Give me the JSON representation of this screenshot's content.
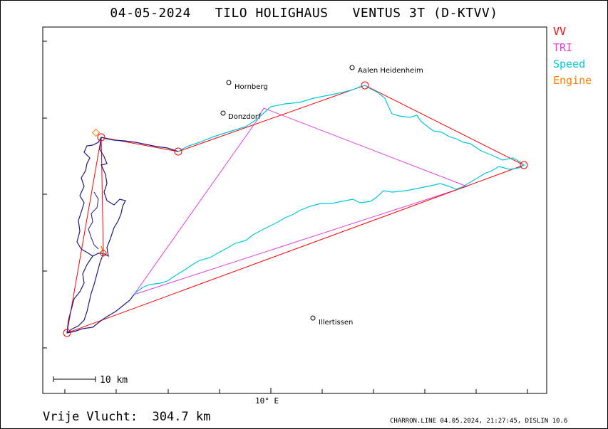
{
  "header": {
    "title": "04-05-2024   TILO HOLIGHAUS   VENTUS 3T (D-KTVV)"
  },
  "legend": [
    {
      "label": "VV",
      "color": "#ff0000"
    },
    {
      "label": "TRI",
      "color": "#e040e0"
    },
    {
      "label": "Speed",
      "color": "#00c8e0"
    },
    {
      "label": "Engine",
      "color": "#ff8000"
    }
  ],
  "axis": {
    "x_tick_label": "10° E"
  },
  "scalebar": {
    "label": "10 km"
  },
  "footer": {
    "distance_text": "Vrije Vlucht:  304.7 km",
    "credit_text": "CHARRON.LINE 04.05.2024, 21:27:45, DISLIN 10.6"
  },
  "chart_data": {
    "type": "map",
    "places": [
      {
        "name": "Hornberg"
      },
      {
        "name": "Donzdorf"
      },
      {
        "name": "Aalen Heidenheim"
      },
      {
        "name": "Illertissen"
      }
    ],
    "colors": {
      "vv": "#ff0000",
      "tri": "#e040e0",
      "speed": "#00c8e0",
      "engine": "#ff8000",
      "track": "#1a1a80"
    }
  }
}
